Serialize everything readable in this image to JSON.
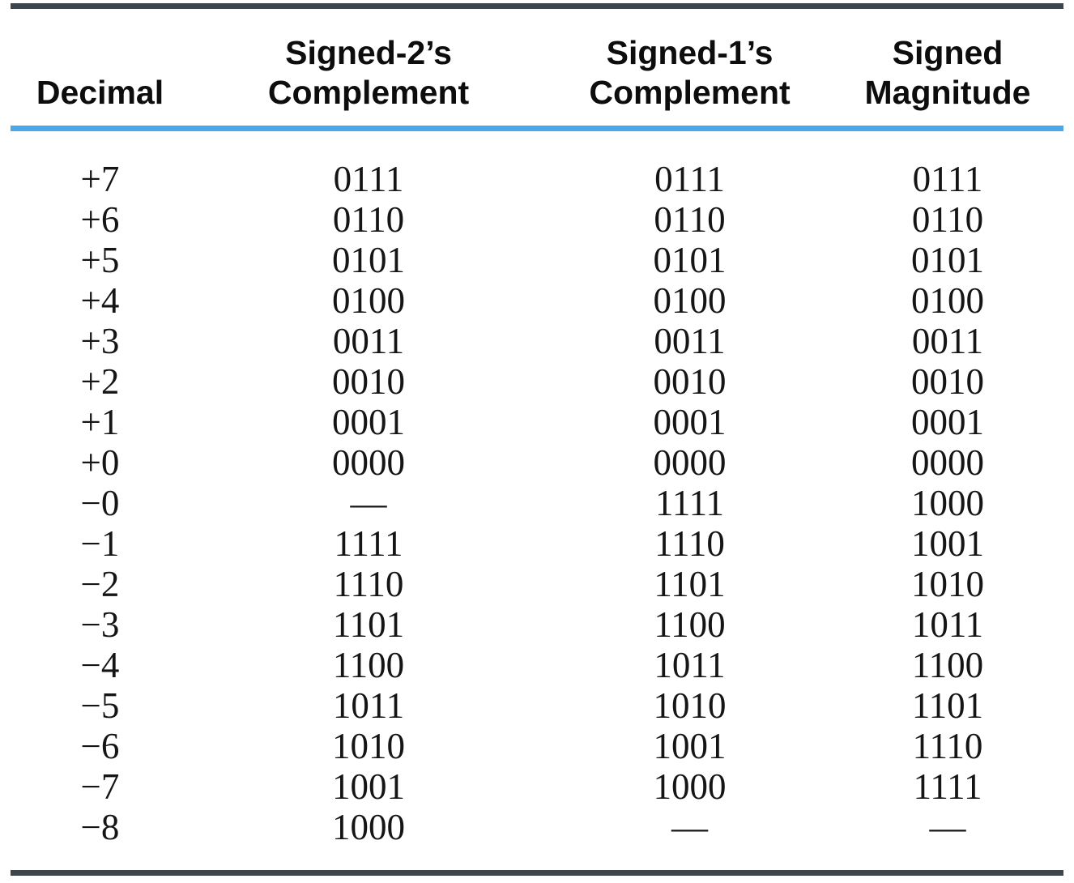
{
  "figure": {
    "kind": "textbook-table",
    "topic": "Signed Binary Numbers"
  },
  "colors": {
    "rule_dark": "#3e464d",
    "rule_blue": "#47a9e9",
    "background": "#ffffff",
    "text": "#0d0d0d"
  },
  "table": {
    "columns": [
      {
        "line1": "",
        "line2": "Decimal"
      },
      {
        "line1": "Signed-2’s",
        "line2": "Complement"
      },
      {
        "line1": "Signed-1’s",
        "line2": "Complement"
      },
      {
        "line1": "Signed",
        "line2": "Magnitude"
      }
    ],
    "column_keys": [
      "decimal",
      "signed-2s-complement",
      "signed-1s-complement",
      "signed-magnitude"
    ],
    "rows": [
      [
        "+7",
        "0111",
        "0111",
        "0111"
      ],
      [
        "+6",
        "0110",
        "0110",
        "0110"
      ],
      [
        "+5",
        "0101",
        "0101",
        "0101"
      ],
      [
        "+4",
        "0100",
        "0100",
        "0100"
      ],
      [
        "+3",
        "0011",
        "0011",
        "0011"
      ],
      [
        "+2",
        "0010",
        "0010",
        "0010"
      ],
      [
        "+1",
        "0001",
        "0001",
        "0001"
      ],
      [
        "+0",
        "0000",
        "0000",
        "0000"
      ],
      [
        "−0",
        "—",
        "1111",
        "1000"
      ],
      [
        "−1",
        "1111",
        "1110",
        "1001"
      ],
      [
        "−2",
        "1110",
        "1101",
        "1010"
      ],
      [
        "−3",
        "1101",
        "1100",
        "1011"
      ],
      [
        "−4",
        "1100",
        "1011",
        "1100"
      ],
      [
        "−5",
        "1011",
        "1010",
        "1101"
      ],
      [
        "−6",
        "1010",
        "1001",
        "1110"
      ],
      [
        "−7",
        "1001",
        "1000",
        "1111"
      ],
      [
        "−8",
        "1000",
        "—",
        "—"
      ]
    ]
  }
}
